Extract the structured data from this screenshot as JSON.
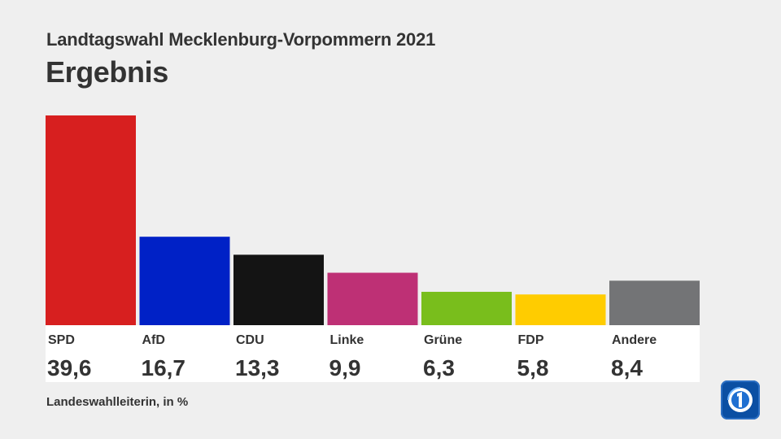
{
  "header": {
    "subtitle": "Landtagswahl Mecklenburg-Vorpommern 2021",
    "title": "Ergebnis"
  },
  "footer": {
    "source": "Landeswahlleiterin, in %"
  },
  "logo": {
    "icon": "ard-tagesschau-logo-icon",
    "color": "#0b4fa3"
  },
  "chart_data": {
    "type": "bar",
    "categories": [
      "SPD",
      "AfD",
      "CDU",
      "Linke",
      "Grüne",
      "FDP",
      "Andere"
    ],
    "values": [
      39.6,
      16.7,
      13.3,
      9.9,
      6.3,
      5.8,
      8.4
    ],
    "value_labels": [
      "39,6",
      "16,7",
      "13,3",
      "9,9",
      "6,3",
      "5,8",
      "8,4"
    ],
    "colors": [
      "#d71f1f",
      "#0021c6",
      "#141414",
      "#be3075",
      "#79be1c",
      "#ffcc00",
      "#737476"
    ],
    "ylim": [
      0,
      39.6
    ],
    "grid": false,
    "legend": "none"
  }
}
